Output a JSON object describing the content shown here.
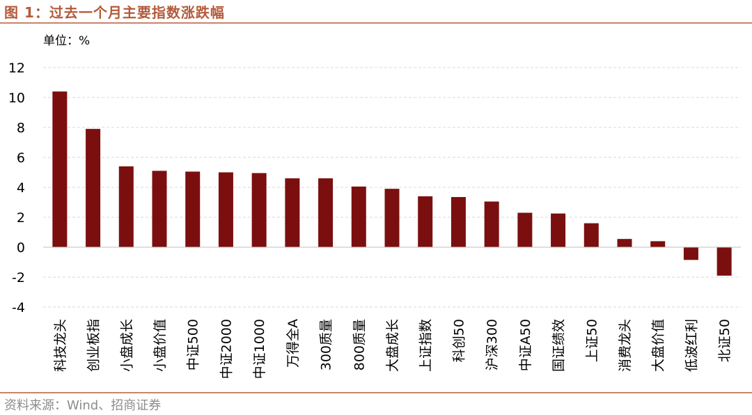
{
  "header": {
    "title": "图 1：过去一个月主要指数涨跌幅"
  },
  "footer": {
    "source": "资料来源：Wind、招商证券"
  },
  "colors": {
    "bar": "#7b0f0f",
    "accent_line": "#c9836b",
    "title": "#b35a3a",
    "grid": "#d9d9d9"
  },
  "chart_data": {
    "type": "bar",
    "title": "过去一个月主要指数涨跌幅",
    "unit_label": "单位：%",
    "xlabel": "",
    "ylabel": "",
    "ylim": [
      -4,
      12
    ],
    "yticks": [
      12,
      10,
      8,
      6,
      4,
      2,
      0,
      -2,
      -4
    ],
    "grid": true,
    "legend": "none",
    "categories": [
      "科技龙头",
      "创业板指",
      "小盘成长",
      "小盘价值",
      "中证500",
      "中证2000",
      "中证1000",
      "万得全A",
      "300质量",
      "800质量",
      "大盘成长",
      "上证指数",
      "科创50",
      "沪深300",
      "中证A50",
      "国证绩效",
      "上证50",
      "消费龙头",
      "大盘价值",
      "低波红利",
      "北证50"
    ],
    "values": [
      10.4,
      7.9,
      5.4,
      5.1,
      5.05,
      5.0,
      4.95,
      4.6,
      4.6,
      4.05,
      3.9,
      3.4,
      3.35,
      3.05,
      2.3,
      2.25,
      1.6,
      0.55,
      0.4,
      -0.85,
      -1.9
    ]
  }
}
